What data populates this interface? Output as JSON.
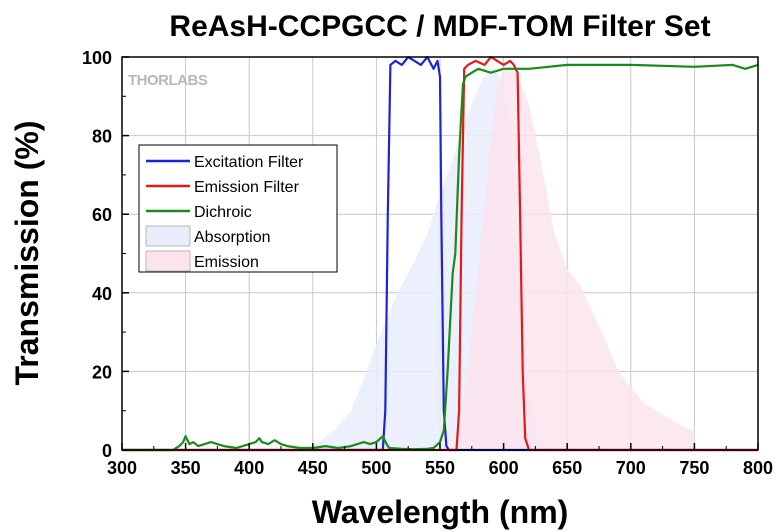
{
  "colors": {
    "excitation": "#1f22d6",
    "emission_filter": "#e81818",
    "dichroic": "#1a8a1a",
    "absorption_fill": "#e9ecfb",
    "emission_fill": "#fbe4ee",
    "grid": "#c8c8c8"
  },
  "watermark": "THORLABS",
  "chart_data": {
    "type": "line",
    "title": "ReAsH-CCPGCC / MDF-TOM Filter Set",
    "xlabel": "Wavelength (nm)",
    "ylabel": "Transmission (%)",
    "xlim": [
      300,
      800
    ],
    "ylim": [
      0,
      100
    ],
    "xticks": [
      "300",
      "350",
      "400",
      "450",
      "500",
      "550",
      "600",
      "650",
      "700",
      "750",
      "800"
    ],
    "yticks": [
      "0",
      "20",
      "40",
      "60",
      "80",
      "100"
    ],
    "grid": true,
    "legend_position": "left",
    "legend": [
      {
        "label": "Excitation Filter",
        "kind": "line",
        "series": "excitation"
      },
      {
        "label": "Emission Filter",
        "kind": "line",
        "series": "emission_filter"
      },
      {
        "label": "Dichroic",
        "kind": "line",
        "series": "dichroic"
      },
      {
        "label": "Absorption",
        "kind": "area",
        "series": "absorption"
      },
      {
        "label": "Emission",
        "kind": "area",
        "series": "emission"
      }
    ],
    "series": [
      {
        "name": "Absorption",
        "key": "absorption",
        "style": "area",
        "x": [
          440,
          455,
          470,
          480,
          490,
          500,
          510,
          520,
          530,
          540,
          550,
          560,
          570,
          575,
          580,
          585,
          590,
          595,
          600,
          605,
          610,
          615,
          620,
          625,
          630,
          640
        ],
        "y": [
          0,
          2,
          6,
          10,
          18,
          27,
          35,
          42,
          48,
          55,
          65,
          74,
          84,
          88,
          92,
          95,
          97,
          96,
          93,
          82,
          62,
          38,
          15,
          5,
          2,
          0
        ]
      },
      {
        "name": "Emission",
        "key": "emission",
        "style": "area",
        "x": [
          560,
          570,
          580,
          590,
          595,
          600,
          605,
          610,
          620,
          630,
          640,
          650,
          660,
          670,
          680,
          690,
          700,
          710,
          720,
          730,
          740,
          750,
          750
        ],
        "y": [
          0,
          15,
          45,
          78,
          92,
          97,
          98,
          96,
          88,
          72,
          55,
          46,
          42,
          35,
          28,
          20,
          16,
          12,
          10,
          8,
          6,
          5,
          0
        ]
      },
      {
        "name": "Excitation Filter",
        "key": "excitation",
        "style": "line",
        "x": [
          300,
          505,
          507,
          509,
          511,
          515,
          520,
          525,
          530,
          535,
          540,
          545,
          548,
          550,
          551,
          553,
          555,
          557,
          800
        ],
        "y": [
          0,
          0,
          10,
          60,
          98,
          99,
          98,
          100,
          99,
          98,
          100,
          97,
          99,
          95,
          60,
          10,
          1,
          0,
          0
        ]
      },
      {
        "name": "Emission Filter",
        "key": "emission_filter",
        "style": "line",
        "x": [
          300,
          563,
          565,
          567,
          569,
          572,
          578,
          585,
          590,
          595,
          600,
          605,
          608,
          611,
          613,
          615,
          617,
          620,
          800
        ],
        "y": [
          0,
          0,
          10,
          60,
          97,
          98,
          99,
          98,
          100,
          99,
          98,
          99,
          98,
          96,
          60,
          20,
          3,
          0,
          0
        ]
      },
      {
        "name": "Dichroic",
        "key": "dichroic",
        "style": "line",
        "x": [
          300,
          340,
          345,
          348,
          350,
          353,
          356,
          360,
          370,
          380,
          390,
          400,
          405,
          408,
          410,
          415,
          420,
          425,
          430,
          440,
          450,
          460,
          470,
          480,
          490,
          495,
          500,
          505,
          508,
          510,
          520,
          530,
          540,
          545,
          550,
          553,
          556,
          560,
          562,
          565,
          568,
          570,
          575,
          580,
          590,
          600,
          620,
          650,
          700,
          750,
          780,
          790,
          800
        ],
        "y": [
          0,
          0,
          1,
          2,
          3.5,
          1.5,
          2,
          1,
          2,
          1,
          0.5,
          1.5,
          2,
          3,
          2,
          1.5,
          2.5,
          1.5,
          1,
          0.5,
          0.5,
          1,
          0.5,
          1,
          2,
          1.5,
          2,
          3.5,
          1.5,
          0.5,
          0.3,
          0.2,
          0.3,
          0.5,
          2,
          5,
          20,
          45,
          50,
          75,
          93,
          95,
          96,
          97,
          96,
          97,
          97,
          98,
          98,
          97.5,
          98,
          97,
          98
        ]
      }
    ]
  }
}
